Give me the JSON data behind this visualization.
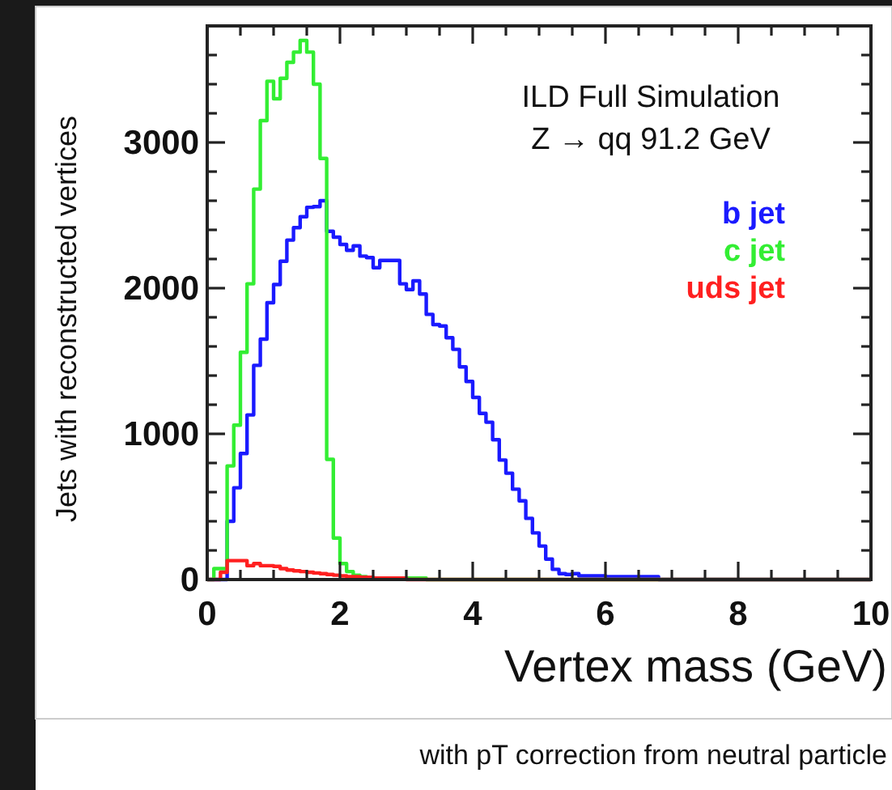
{
  "chart_data": {
    "type": "histogram",
    "title": "ILD Full Simulation",
    "subtitle": "Z → qq 91.2 GeV",
    "xlabel": "Vertex mass (GeV)",
    "ylabel": "Jets with reconstructed vertices",
    "annotations": [
      "with pT correction from neutral particle"
    ],
    "bins": [
      0,
      0.1,
      0.2,
      0.3,
      0.4,
      0.5,
      0.6,
      0.7,
      0.8,
      0.9,
      1,
      1.1,
      1.2,
      1.3,
      1.4,
      1.5,
      1.6,
      1.7,
      1.8,
      1.9,
      2,
      2.1,
      2.2,
      2.3,
      2.4,
      2.5,
      2.6,
      2.7,
      2.8,
      2.9,
      3,
      3.1,
      3.2,
      3.3,
      3.4,
      3.5,
      3.6,
      3.7,
      3.8,
      3.9,
      4,
      4.1,
      4.2,
      4.3,
      4.4,
      4.5,
      4.6,
      4.7,
      4.8,
      4.9,
      5,
      5.1,
      5.2,
      5.3,
      5.4,
      5.5,
      5.6,
      5.7,
      5.8,
      5.9,
      6,
      6.1,
      6.2,
      6.3,
      6.4,
      6.5,
      6.6,
      6.7,
      6.8,
      6.9,
      7,
      7.1,
      7.2,
      7.3,
      7.4,
      7.5,
      7.6,
      7.7,
      7.8,
      7.9,
      8,
      8.1,
      8.2,
      8.3,
      8.4,
      8.5,
      8.6,
      8.7,
      8.8,
      8.9,
      9,
      9.1,
      9.2,
      9.3,
      9.4,
      9.5,
      9.6,
      9.7,
      9.8,
      9.9,
      10
    ],
    "series": [
      {
        "name": "b jet",
        "color": "#1a1aff",
        "values": [
          0,
          0,
          0,
          400,
          630,
          865,
          1130,
          1470,
          1650,
          1900,
          2025,
          2185,
          2330,
          2415,
          2490,
          2555,
          2560,
          2600,
          2390,
          2350,
          2300,
          2260,
          2290,
          2220,
          2210,
          2140,
          2190,
          2190,
          2190,
          2030,
          1990,
          2050,
          1960,
          1820,
          1750,
          1740,
          1660,
          1580,
          1460,
          1360,
          1250,
          1140,
          1080,
          960,
          820,
          730,
          620,
          540,
          420,
          320,
          230,
          140,
          70,
          40,
          35,
          40,
          25,
          25,
          25,
          25,
          20,
          20,
          20,
          20,
          20,
          20,
          20,
          20,
          0,
          0,
          0,
          0,
          0,
          0,
          0,
          0,
          0,
          0,
          0,
          0,
          0,
          0,
          0,
          0,
          0,
          0,
          0,
          0,
          0,
          0,
          0,
          0,
          0,
          0,
          0,
          0,
          0,
          0,
          0,
          0
        ]
      },
      {
        "name": "c jet",
        "color": "#33ee33",
        "values": [
          0,
          75,
          75,
          780,
          1060,
          1560,
          2030,
          2680,
          3150,
          3420,
          3300,
          3440,
          3550,
          3620,
          3700,
          3620,
          3400,
          2890,
          825,
          285,
          110,
          55,
          30,
          20,
          10,
          10,
          10,
          10,
          10,
          10,
          10,
          10,
          10,
          0,
          0,
          0,
          0,
          0,
          0,
          0,
          0,
          0,
          0,
          0,
          0,
          0,
          0,
          0,
          0,
          0,
          0,
          0,
          0,
          0,
          0,
          0,
          0,
          0,
          0,
          0,
          0,
          0,
          0,
          0,
          0,
          0,
          0,
          0,
          0,
          0,
          0,
          0,
          0,
          0,
          0,
          0,
          0,
          0,
          0,
          0,
          0,
          0,
          0,
          0,
          0,
          0,
          0,
          0,
          0,
          0,
          0,
          0,
          0,
          0,
          0,
          0,
          0,
          0,
          0,
          0
        ]
      },
      {
        "name": "uds jet",
        "color": "#ff2020",
        "values": [
          0,
          0,
          50,
          130,
          130,
          130,
          95,
          110,
          95,
          95,
          90,
          75,
          65,
          60,
          55,
          50,
          45,
          40,
          35,
          30,
          25,
          20,
          20,
          15,
          15,
          10,
          10,
          10,
          10,
          10,
          0,
          0,
          0,
          0,
          0,
          0,
          0,
          0,
          0,
          0,
          0,
          0,
          0,
          0,
          0,
          0,
          0,
          0,
          0,
          0,
          0,
          0,
          0,
          0,
          0,
          0,
          0,
          0,
          0,
          0,
          0,
          0,
          0,
          0,
          0,
          0,
          0,
          0,
          0,
          0,
          0,
          0,
          0,
          0,
          0,
          0,
          0,
          0,
          0,
          0,
          0,
          0,
          0,
          0,
          0,
          0,
          0,
          0,
          0,
          0,
          0,
          0,
          0,
          0,
          0,
          0,
          0,
          0,
          0,
          0
        ]
      }
    ],
    "xlim": [
      0,
      10
    ],
    "xticks": [
      0,
      {
        "value": 0.5,
        "label": null
      },
      {
        "value": 1,
        "label": null
      },
      {
        "value": 1.5,
        "label": null
      },
      2,
      {
        "value": 2.5,
        "label": null
      },
      {
        "value": 3,
        "label": null
      },
      {
        "value": 3.5,
        "label": null
      },
      4,
      {
        "value": 4.5,
        "label": null
      },
      {
        "value": 5,
        "label": null
      },
      {
        "value": 5.5,
        "label": null
      },
      6,
      {
        "value": 6.5,
        "label": null
      },
      {
        "value": 7,
        "label": null
      },
      {
        "value": 7.5,
        "label": null
      },
      8,
      {
        "value": 8.5,
        "label": null
      },
      {
        "value": 9,
        "label": null
      },
      {
        "value": 9.5,
        "label": null
      },
      10
    ],
    "ylim": [
      0,
      3800
    ],
    "yticks": [
      0,
      {
        "value": 200,
        "label": null
      },
      {
        "value": 400,
        "label": null
      },
      {
        "value": 600,
        "label": null
      },
      {
        "value": 800,
        "label": null
      },
      1000,
      {
        "value": 1200,
        "label": null
      },
      {
        "value": 1400,
        "label": null
      },
      {
        "value": 1600,
        "label": null
      },
      {
        "value": 1800,
        "label": null
      },
      2000,
      {
        "value": 2200,
        "label": null
      },
      {
        "value": 2400,
        "label": null
      },
      {
        "value": 2600,
        "label": null
      },
      {
        "value": 2800,
        "label": null
      },
      3000,
      {
        "value": 3200,
        "label": null
      },
      {
        "value": 3400,
        "label": null
      },
      {
        "value": 3600,
        "label": null
      }
    ],
    "legend": "top right",
    "grid": false
  }
}
